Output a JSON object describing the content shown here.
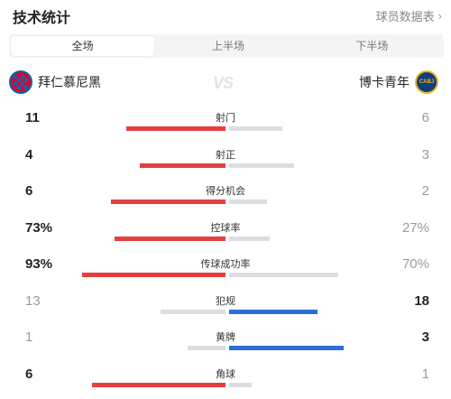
{
  "header": {
    "title": "技术统计",
    "report_link": "球员数据表",
    "report_chevron": "›"
  },
  "tabs": [
    {
      "label": "全场",
      "active": true
    },
    {
      "label": "上半场",
      "active": false
    },
    {
      "label": "下半场",
      "active": false
    }
  ],
  "teams": {
    "home": {
      "name": "拜仁慕尼黑",
      "logo_icon": "bayern-munich-logo-icon",
      "logo_color": "#dc052d"
    },
    "away": {
      "name": "博卡青年",
      "logo_icon": "boca-juniors-logo-icon",
      "logo_text": "CABJ",
      "logo_color": "#103f79"
    },
    "vs": "VS"
  },
  "colors": {
    "home_bar": "#e53f3f",
    "away_bar": "#2c6fd6",
    "neutral_bar": "#dcdde0"
  },
  "stats": [
    {
      "label": "射门",
      "left": "11",
      "right": "6",
      "left_frac": 0.52,
      "right_frac": 0.28,
      "winner": "left"
    },
    {
      "label": "射正",
      "left": "4",
      "right": "3",
      "left_frac": 0.45,
      "right_frac": 0.34,
      "winner": "left"
    },
    {
      "label": "得分机会",
      "left": "6",
      "right": "2",
      "left_frac": 0.6,
      "right_frac": 0.2,
      "winner": "left"
    },
    {
      "label": "控球率",
      "left": "73%",
      "right": "27%",
      "left_frac": 0.58,
      "right_frac": 0.21,
      "winner": "left"
    },
    {
      "label": "传球成功率",
      "left": "93%",
      "right": "70%",
      "left_frac": 0.75,
      "right_frac": 0.57,
      "winner": "left"
    },
    {
      "label": "犯规",
      "left": "13",
      "right": "18",
      "left_frac": 0.34,
      "right_frac": 0.46,
      "winner": "right"
    },
    {
      "label": "黄牌",
      "left": "1",
      "right": "3",
      "left_frac": 0.2,
      "right_frac": 0.6,
      "winner": "right"
    },
    {
      "label": "角球",
      "left": "6",
      "right": "1",
      "left_frac": 0.7,
      "right_frac": 0.12,
      "winner": "left"
    }
  ]
}
